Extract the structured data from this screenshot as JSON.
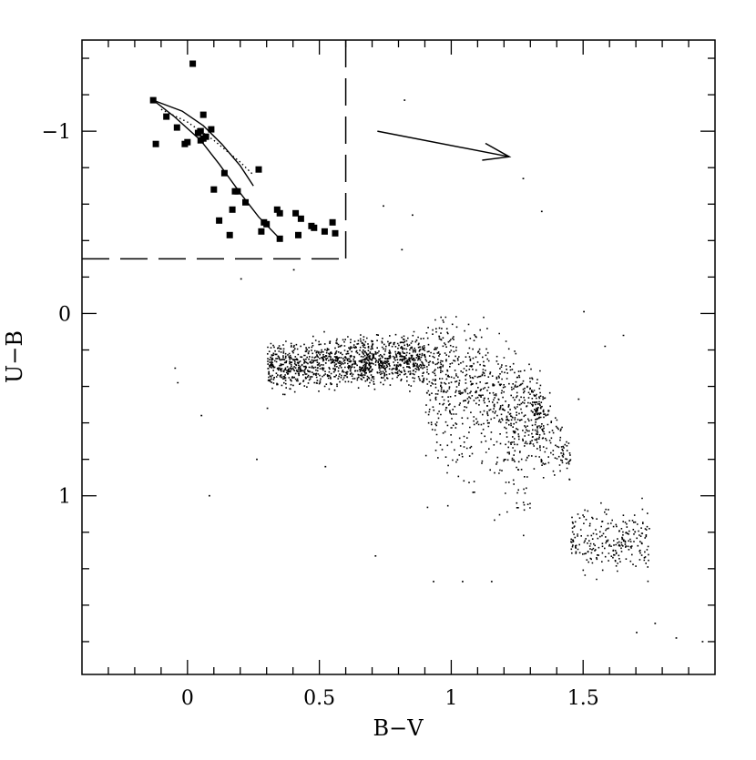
{
  "chart_data": {
    "type": "scatter",
    "title": "",
    "xlabel": "B−V",
    "ylabel": "U−B",
    "xlim": [
      -0.4,
      2.0
    ],
    "ylim": [
      1.98,
      -1.5
    ],
    "y_inverted": true,
    "xticks": [
      {
        "value": 0,
        "label": "0"
      },
      {
        "value": 0.5,
        "label": "0.5"
      },
      {
        "value": 1,
        "label": "1"
      },
      {
        "value": 1.5,
        "label": "1.5"
      }
    ],
    "yticks": [
      {
        "value": -1,
        "label": "−1"
      },
      {
        "value": 0,
        "label": "0"
      },
      {
        "value": 1,
        "label": "1"
      }
    ],
    "series": [
      {
        "marker": "square",
        "points": [
          [
            -0.13,
            -1.17
          ],
          [
            -0.12,
            -0.93
          ],
          [
            -0.08,
            -1.08
          ],
          [
            -0.04,
            -1.02
          ],
          [
            -0.01,
            -0.93
          ],
          [
            0.0,
            -0.94
          ],
          [
            0.02,
            -1.37
          ],
          [
            0.04,
            -0.99
          ],
          [
            0.05,
            -1.0
          ],
          [
            0.05,
            -0.95
          ],
          [
            0.06,
            -1.09
          ],
          [
            0.06,
            -0.96
          ],
          [
            0.07,
            -0.97
          ],
          [
            0.09,
            -1.01
          ],
          [
            0.1,
            -0.68
          ],
          [
            0.12,
            -0.51
          ],
          [
            0.14,
            -0.77
          ],
          [
            0.16,
            -0.43
          ],
          [
            0.17,
            -0.57
          ],
          [
            0.18,
            -0.67
          ],
          [
            0.19,
            -0.67
          ],
          [
            0.22,
            -0.61
          ],
          [
            0.27,
            -0.79
          ],
          [
            0.28,
            -0.45
          ],
          [
            0.29,
            -0.5
          ],
          [
            0.3,
            -0.49
          ],
          [
            0.34,
            -0.57
          ],
          [
            0.35,
            -0.55
          ],
          [
            0.35,
            -0.41
          ],
          [
            0.41,
            -0.55
          ],
          [
            0.42,
            -0.43
          ],
          [
            0.43,
            -0.52
          ],
          [
            0.47,
            -0.48
          ],
          [
            0.48,
            -0.47
          ],
          [
            0.52,
            -0.45
          ],
          [
            0.55,
            -0.5
          ],
          [
            0.56,
            -0.44
          ]
        ]
      }
    ],
    "lines": [
      {
        "style": "solid",
        "points": [
          [
            -0.13,
            -1.17
          ],
          [
            -0.05,
            -1.08
          ],
          [
            0.05,
            -0.95
          ],
          [
            0.12,
            -0.82
          ],
          [
            0.2,
            -0.66
          ],
          [
            0.27,
            -0.53
          ],
          [
            0.35,
            -0.41
          ]
        ]
      },
      {
        "style": "solid",
        "points": [
          [
            -0.13,
            -1.17
          ],
          [
            -0.02,
            -1.11
          ],
          [
            0.06,
            -1.03
          ],
          [
            0.13,
            -0.93
          ],
          [
            0.2,
            -0.81
          ],
          [
            0.25,
            -0.7
          ]
        ]
      },
      {
        "style": "dotted",
        "points": [
          [
            -0.1,
            -1.12
          ],
          [
            0.0,
            -1.05
          ],
          [
            0.1,
            -0.95
          ],
          [
            0.2,
            -0.83
          ],
          [
            0.25,
            -0.76
          ]
        ]
      }
    ],
    "reddening_vector": {
      "from": [
        0.72,
        -1.0
      ],
      "to": [
        1.22,
        -0.86
      ]
    },
    "dashed_box": {
      "x_right": 0.6,
      "y_bottom": -0.3
    },
    "field_stars": {
      "count": 9000,
      "description_values": "main clump spans B-V 0.3 to 1.75, U-B 0.1 to 1.4"
    }
  }
}
